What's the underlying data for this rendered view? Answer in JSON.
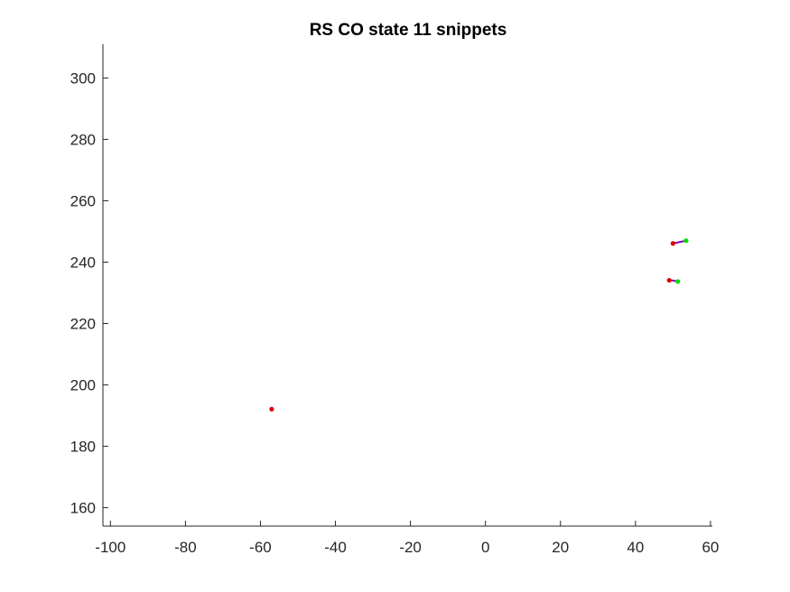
{
  "chart_data": {
    "type": "line",
    "title": "RS  CO state 11 snippets",
    "xlabel": "",
    "ylabel": "",
    "xlim": [
      -102,
      60.5
    ],
    "ylim": [
      154,
      311
    ],
    "xticks": [
      -100,
      -80,
      -60,
      -40,
      -20,
      0,
      20,
      40,
      60
    ],
    "yticks": [
      160,
      180,
      200,
      220,
      240,
      260,
      280,
      300
    ],
    "xtick_labels": [
      "-100",
      "-80",
      "-60",
      "-40",
      "-20",
      "0",
      "20",
      "40",
      "60"
    ],
    "ytick_labels": [
      "160",
      "180",
      "200",
      "220",
      "240",
      "260",
      "280",
      "300"
    ],
    "grid": false,
    "colors": {
      "start": "#00dd00",
      "end": "#dd0000",
      "path": "#8800aa",
      "axis": "#262626"
    },
    "series": [
      {
        "x": [
          53.5,
          52.0,
          50.0
        ],
        "y": [
          247.0,
          246.6,
          246.1
        ]
      },
      {
        "x": [
          51.3,
          50.0,
          49.0
        ],
        "y": [
          233.7,
          234.0,
          234.1
        ]
      },
      {
        "x": [
          -57.0
        ],
        "y": [
          192.1
        ]
      }
    ]
  }
}
